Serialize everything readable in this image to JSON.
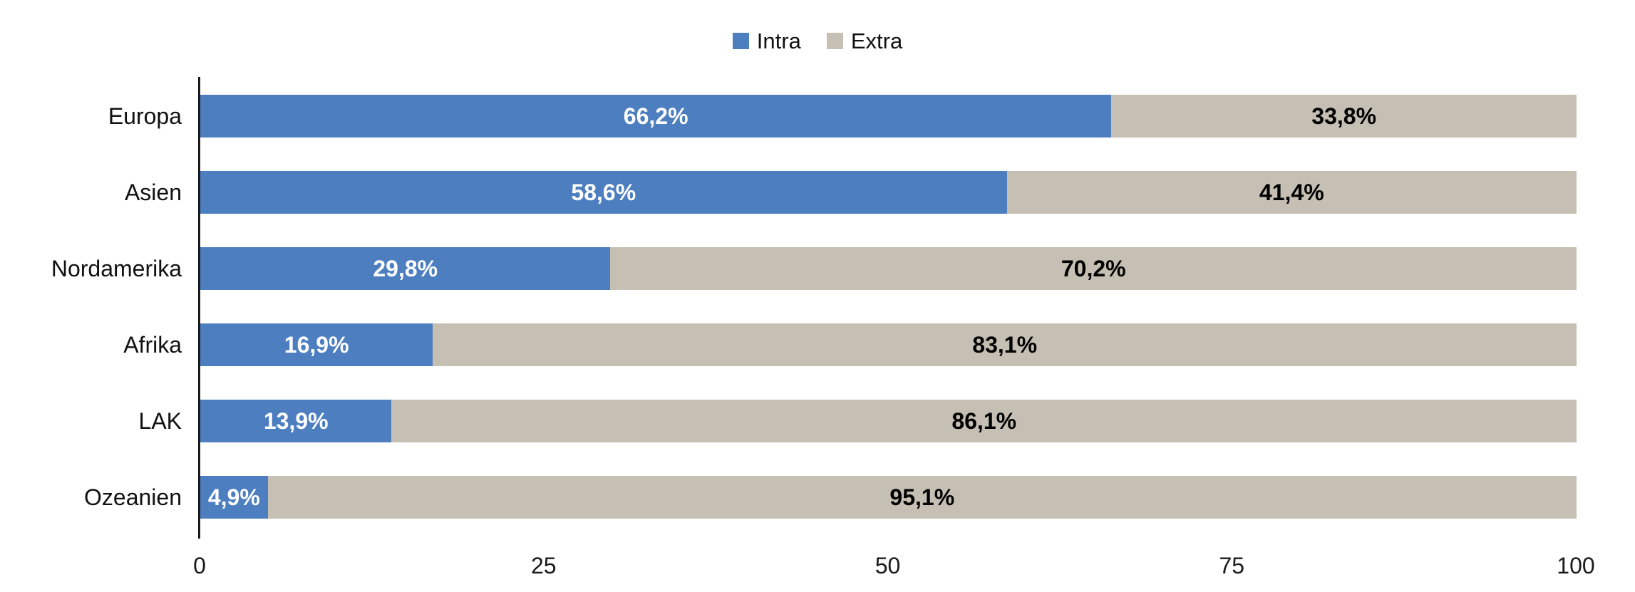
{
  "chart_data": {
    "type": "bar",
    "orientation": "horizontal",
    "stacked": true,
    "title": "",
    "xlabel": "",
    "ylabel": "",
    "grid": false,
    "legend_position": "top-center",
    "xlim": [
      0,
      100
    ],
    "x_ticks": [
      {
        "label": "0",
        "value": 0
      },
      {
        "label": "25",
        "value": 25
      },
      {
        "label": "50",
        "value": 50
      },
      {
        "label": "75",
        "value": 75
      },
      {
        "label": "100",
        "value": 100
      }
    ],
    "categories": [
      "Europa",
      "Asien",
      "Nordamerika",
      "Afrika",
      "LAK",
      "Ozeanien"
    ],
    "series": [
      {
        "name": "Intra",
        "color": "#4d7ec0",
        "label_color": "#ffffff",
        "values": [
          66.2,
          58.6,
          29.8,
          16.9,
          13.9,
          4.9
        ],
        "labels": [
          "66,2%",
          "58,6%",
          "29,8%",
          "16,9%",
          "13,9%",
          "4,9%"
        ]
      },
      {
        "name": "Extra",
        "color": "#c5c0b3",
        "label_color": "#000000",
        "values": [
          33.8,
          41.4,
          70.2,
          83.1,
          86.1,
          95.1
        ],
        "labels": [
          "33,8%",
          "41,4%",
          "70,2%",
          "83,1%",
          "86,1%",
          "95,1%"
        ]
      }
    ],
    "axis_color": "#1a1a1a",
    "background_color": "#ffffff"
  }
}
